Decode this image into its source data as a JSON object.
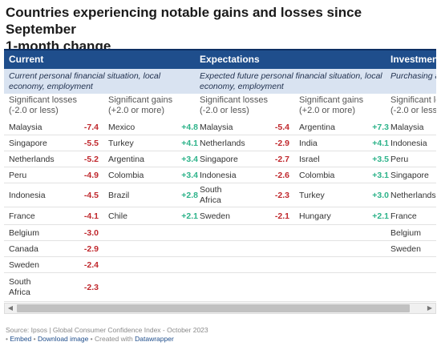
{
  "title": {
    "line1": "Countries experiencing notable gains and losses since September",
    "line2": "1-month change"
  },
  "sections": [
    {
      "header": "Current",
      "subtitle": "Current personal financial situation, local economy, employment"
    },
    {
      "header": "Expectations",
      "subtitle": "Expected future personal financial situation, local economy, employment"
    },
    {
      "header": "Investment",
      "subtitle": "Purchasing a personal fina"
    }
  ],
  "column_headers": {
    "losses_line1": "Significant losses",
    "losses_line2": "(-2.0 or less)",
    "gains_line1": "Significant gains",
    "gains_line2": "(+2.0 or more)"
  },
  "chart_data": {
    "type": "table",
    "title": "Countries experiencing notable gains and losses since September",
    "subtitle": "1-month change",
    "groups": [
      {
        "name": "Current",
        "losses": [
          {
            "country": "Malaysia",
            "value": "-7.4"
          },
          {
            "country": "Singapore",
            "value": "-5.5"
          },
          {
            "country": "Netherlands",
            "value": "-5.2"
          },
          {
            "country": "Peru",
            "value": "-4.9"
          },
          {
            "country": "Indonesia",
            "value": "-4.5"
          },
          {
            "country": "France",
            "value": "-4.1"
          },
          {
            "country": "Belgium",
            "value": "-3.0"
          },
          {
            "country": "Canada",
            "value": "-2.9"
          },
          {
            "country": "Sweden",
            "value": "-2.4"
          },
          {
            "country": "South Africa",
            "value": "-2.3"
          }
        ],
        "gains": [
          {
            "country": "Mexico",
            "value": "+4.8"
          },
          {
            "country": "Turkey",
            "value": "+4.1"
          },
          {
            "country": "Argentina",
            "value": "+3.4"
          },
          {
            "country": "Colombia",
            "value": "+3.4"
          },
          {
            "country": "Brazil",
            "value": "+2.8"
          },
          {
            "country": "Chile",
            "value": "+2.1"
          }
        ]
      },
      {
        "name": "Expectations",
        "losses": [
          {
            "country": "Malaysia",
            "value": "-5.4"
          },
          {
            "country": "Netherlands",
            "value": "-2.9"
          },
          {
            "country": "Singapore",
            "value": "-2.7"
          },
          {
            "country": "Indonesia",
            "value": "-2.6"
          },
          {
            "country": "South Africa",
            "value": "-2.3"
          },
          {
            "country": "Sweden",
            "value": "-2.1"
          }
        ],
        "gains": [
          {
            "country": "Argentina",
            "value": "+7.3"
          },
          {
            "country": "India",
            "value": "+4.1"
          },
          {
            "country": "Israel",
            "value": "+3.5"
          },
          {
            "country": "Colombia",
            "value": "+3.1"
          },
          {
            "country": "Turkey",
            "value": "+3.0"
          },
          {
            "country": "Hungary",
            "value": "+2.1"
          }
        ]
      },
      {
        "name": "Investment",
        "losses": [
          {
            "country": "Malaysia",
            "value": ""
          },
          {
            "country": "Indonesia",
            "value": ""
          },
          {
            "country": "Peru",
            "value": ""
          },
          {
            "country": "Singapore",
            "value": ""
          },
          {
            "country": "Netherlands",
            "value": ""
          },
          {
            "country": "France",
            "value": ""
          },
          {
            "country": "Belgium",
            "value": ""
          },
          {
            "country": "Sweden",
            "value": ""
          }
        ],
        "gains": []
      }
    ]
  },
  "footer": {
    "source": "Source: Ipsos | Global Consumer Confidence Index - October 2023",
    "embed": "Embed",
    "download": "Download image",
    "created": "Created with",
    "tool": "Datawrapper"
  },
  "colors": {
    "header_bg": "#1f4e8c",
    "subheader_bg": "#d9e3f1",
    "loss": "#c0282d",
    "gain": "#2db38a"
  }
}
